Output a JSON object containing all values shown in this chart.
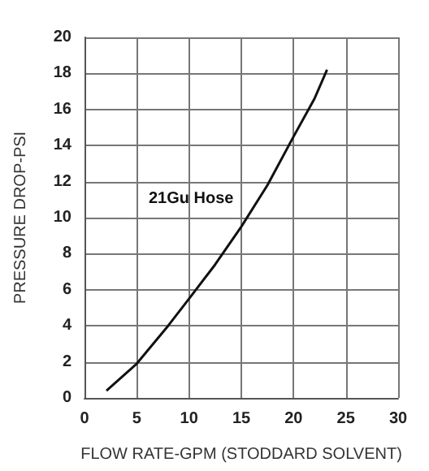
{
  "chart_data": {
    "type": "line",
    "xlabel": "FLOW RATE-GPM (STODDARD SOLVENT)",
    "ylabel": "PRESSURE DROP-PSI",
    "series": [
      {
        "name": "21Gu Hose",
        "color": "#111111",
        "x": [
          2.1,
          5,
          8,
          10,
          12.5,
          15,
          17.5,
          20,
          22,
          23.2
        ],
        "values": [
          0.4,
          1.9,
          4,
          5.5,
          7.4,
          9.5,
          11.8,
          14.5,
          16.6,
          18.2
        ]
      }
    ],
    "xlim": [
      0,
      30
    ],
    "xticks": [
      0,
      5,
      10,
      15,
      20,
      25,
      30
    ],
    "ylim": [
      0,
      20
    ],
    "yticks": [
      0,
      2,
      4,
      6,
      8,
      10,
      12,
      14,
      16,
      18,
      20
    ],
    "grid": true,
    "marker": "none",
    "line_style": "solid",
    "legend": false
  }
}
